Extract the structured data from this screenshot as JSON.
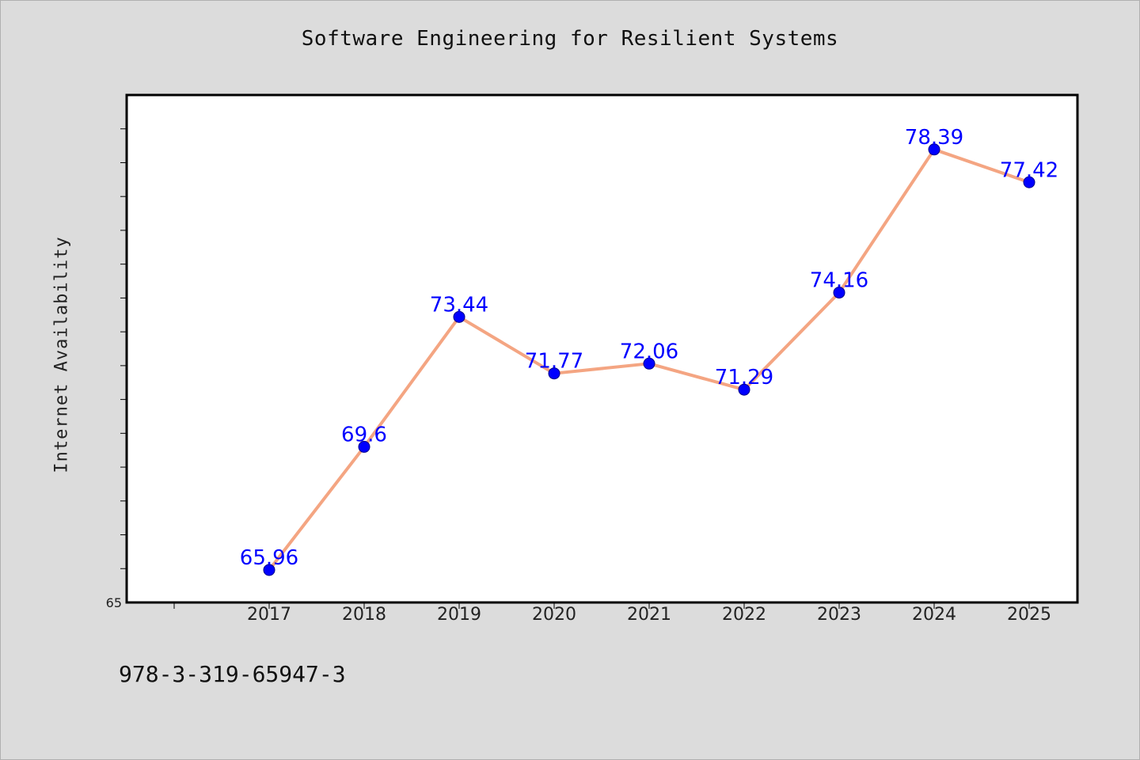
{
  "chart_data": {
    "type": "line",
    "title": "Software Engineering for Resilient Systems",
    "xlabel": "",
    "ylabel": "Internet Availability",
    "categories": [
      "2017",
      "2018",
      "2019",
      "2020",
      "2021",
      "2022",
      "2023",
      "2024",
      "2025"
    ],
    "series": [
      {
        "values": [
          65.96,
          69.6,
          73.44,
          71.77,
          72.06,
          71.29,
          74.16,
          78.39,
          77.42
        ]
      }
    ],
    "data_labels": [
      "65.96",
      "69.6",
      "73.44",
      "71.77",
      "72.06",
      "71.29",
      "74.16",
      "78.39",
      "77.42"
    ],
    "ylim": [
      65,
      80
    ],
    "y_tick_labels": [
      "65"
    ],
    "grid": false,
    "legend": "none",
    "colors": {
      "line": "#f4a582",
      "marker": "#0000ff",
      "data_label": "#0000ff",
      "plot_background": "#ffffff",
      "page_background": "#dcdcdc"
    }
  },
  "footer": {
    "code": "978-3-319-65947-3"
  }
}
